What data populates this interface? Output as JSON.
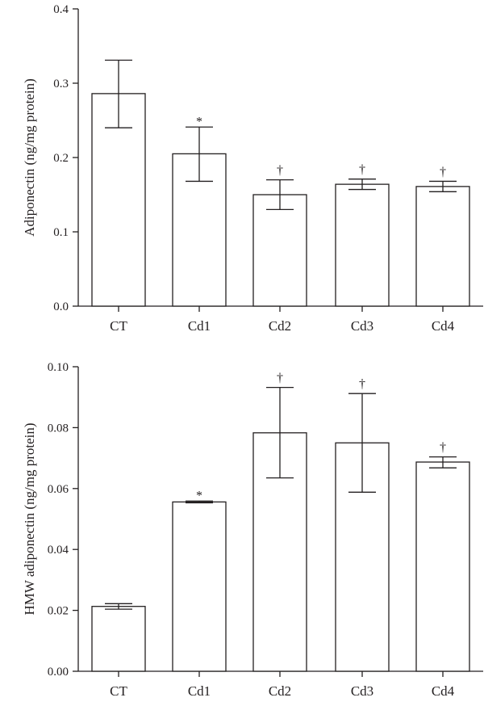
{
  "chart_data": [
    {
      "type": "bar",
      "title": "",
      "xlabel": "",
      "ylabel": "Adiponectin (ng/mg protein)",
      "categories": [
        "CT",
        "Cd1",
        "Cd2",
        "Cd3",
        "Cd4"
      ],
      "values": [
        0.286,
        0.205,
        0.15,
        0.164,
        0.161
      ],
      "error_upper": [
        0.331,
        0.241,
        0.17,
        0.171,
        0.168
      ],
      "error_lower": [
        0.24,
        0.168,
        0.13,
        0.157,
        0.154
      ],
      "significance": [
        "",
        "*",
        "†",
        "†",
        "†"
      ],
      "ylim": [
        0,
        0.4
      ],
      "yticks": [
        0.0,
        0.1,
        0.2,
        0.3,
        0.4
      ],
      "ytick_labels": [
        "0.0",
        "0.1",
        "0.2",
        "0.3",
        "0.4"
      ],
      "grid": false
    },
    {
      "type": "bar",
      "title": "",
      "xlabel": "",
      "ylabel": "HMW adiponectin (ng/mg protein)",
      "categories": [
        "CT",
        "Cd1",
        "Cd2",
        "Cd3",
        "Cd4"
      ],
      "values": [
        0.0213,
        0.0556,
        0.0783,
        0.075,
        0.0687
      ],
      "error_upper": [
        0.0222,
        0.0559,
        0.0932,
        0.0912,
        0.0704
      ],
      "error_lower": [
        0.0204,
        0.0553,
        0.0635,
        0.0588,
        0.0668
      ],
      "significance": [
        "",
        "*",
        "†",
        "†",
        "†"
      ],
      "ylim": [
        0,
        0.1
      ],
      "yticks": [
        0.0,
        0.02,
        0.04,
        0.06,
        0.08,
        0.1
      ],
      "ytick_labels": [
        "0.00",
        "0.02",
        "0.04",
        "0.06",
        "0.08",
        "0.10"
      ],
      "grid": false
    }
  ],
  "colors": {
    "ink": "#231f20",
    "bar_fill": "#ffffff"
  }
}
